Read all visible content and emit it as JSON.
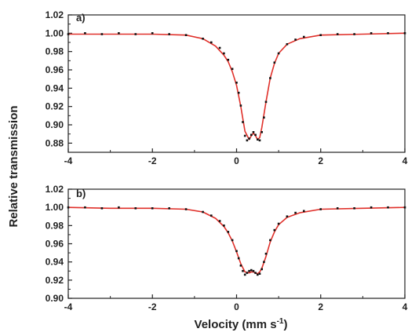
{
  "figure": {
    "ylabel": "Relative transmission",
    "xlabel_main": "Velocity (mm s",
    "xlabel_sup": "-1",
    "xlabel_close": ")"
  },
  "colors": {
    "fit_line": "#e0302a",
    "data_points": "#111111",
    "axes": "#222222"
  },
  "chart_data": [
    {
      "type": "scatter",
      "panel_label": "a)",
      "xlim": [
        -4,
        4
      ],
      "ylim": [
        0.87,
        1.02
      ],
      "xticks": [
        -4,
        -2,
        0,
        2,
        4
      ],
      "xtick_labels": [
        "-4",
        "-2",
        "0",
        "2",
        "4"
      ],
      "yticks": [
        0.88,
        0.9,
        0.92,
        0.94,
        0.96,
        0.98,
        1.0,
        1.02
      ],
      "ytick_labels": [
        "0.88",
        "0.90",
        "0.92",
        "0.94",
        "0.96",
        "0.98",
        "1.00",
        "1.02"
      ],
      "grid": false,
      "series": [
        {
          "kind": "measured",
          "x": [
            -4.0,
            -3.6,
            -3.2,
            -2.8,
            -2.4,
            -2.0,
            -1.6,
            -1.2,
            -0.8,
            -0.6,
            -0.4,
            -0.3,
            -0.2,
            -0.1,
            0.0,
            0.05,
            0.1,
            0.15,
            0.2,
            0.25,
            0.3,
            0.35,
            0.4,
            0.45,
            0.5,
            0.55,
            0.6,
            0.65,
            0.7,
            0.8,
            0.9,
            1.0,
            1.2,
            1.4,
            1.6,
            2.0,
            2.4,
            2.8,
            3.2,
            3.6,
            4.0
          ],
          "y": [
            0.999,
            1.0,
            0.999,
            1.0,
            0.999,
            1.0,
            0.999,
            0.998,
            0.994,
            0.99,
            0.984,
            0.978,
            0.971,
            0.961,
            0.946,
            0.935,
            0.921,
            0.903,
            0.888,
            0.883,
            0.885,
            0.889,
            0.892,
            0.889,
            0.884,
            0.883,
            0.892,
            0.908,
            0.925,
            0.951,
            0.968,
            0.978,
            0.988,
            0.993,
            0.996,
            0.998,
            0.999,
            0.999,
            1.0,
            1.0,
            1.0
          ]
        },
        {
          "kind": "fit",
          "x": [
            -4.0,
            -3.0,
            -2.0,
            -1.2,
            -0.8,
            -0.5,
            -0.3,
            -0.2,
            -0.1,
            0.0,
            0.1,
            0.2,
            0.3,
            0.35,
            0.4,
            0.45,
            0.5,
            0.55,
            0.6,
            0.7,
            0.8,
            0.9,
            1.0,
            1.2,
            1.5,
            2.0,
            3.0,
            4.0
          ],
          "y": [
            0.999,
            0.999,
            0.999,
            0.998,
            0.994,
            0.986,
            0.976,
            0.969,
            0.958,
            0.943,
            0.92,
            0.893,
            0.884,
            0.888,
            0.891,
            0.888,
            0.884,
            0.886,
            0.897,
            0.925,
            0.951,
            0.967,
            0.978,
            0.988,
            0.994,
            0.998,
            0.999,
            1.0
          ]
        }
      ]
    },
    {
      "type": "scatter",
      "panel_label": "b)",
      "xlim": [
        -4,
        4
      ],
      "ylim": [
        0.9,
        1.02
      ],
      "xticks": [
        -4,
        -2,
        0,
        2,
        4
      ],
      "xtick_labels": [
        "-4",
        "-2",
        "0",
        "2",
        "4"
      ],
      "yticks": [
        0.9,
        0.92,
        0.94,
        0.96,
        0.98,
        1.0,
        1.02
      ],
      "ytick_labels": [
        "0.90",
        "0.92",
        "0.94",
        "0.96",
        "0.98",
        "1.00",
        "1.02"
      ],
      "grid": false,
      "series": [
        {
          "kind": "measured",
          "x": [
            -4.0,
            -3.6,
            -3.2,
            -2.8,
            -2.4,
            -2.0,
            -1.6,
            -1.2,
            -0.8,
            -0.6,
            -0.4,
            -0.3,
            -0.2,
            -0.1,
            0.0,
            0.05,
            0.1,
            0.15,
            0.2,
            0.25,
            0.3,
            0.35,
            0.4,
            0.45,
            0.5,
            0.55,
            0.6,
            0.65,
            0.7,
            0.8,
            0.9,
            1.0,
            1.2,
            1.4,
            1.6,
            2.0,
            2.4,
            2.8,
            3.2,
            3.6,
            4.0
          ],
          "y": [
            1.0,
            1.0,
            0.999,
            1.0,
            0.999,
            0.999,
            0.999,
            0.998,
            0.995,
            0.991,
            0.985,
            0.98,
            0.973,
            0.964,
            0.952,
            0.944,
            0.936,
            0.93,
            0.926,
            0.928,
            0.93,
            0.931,
            0.93,
            0.928,
            0.926,
            0.927,
            0.932,
            0.94,
            0.949,
            0.964,
            0.975,
            0.982,
            0.99,
            0.994,
            0.996,
            0.998,
            0.999,
            0.999,
            1.0,
            1.0,
            1.0
          ]
        },
        {
          "kind": "fit",
          "x": [
            -4.0,
            -3.0,
            -2.0,
            -1.2,
            -0.8,
            -0.5,
            -0.3,
            -0.2,
            -0.1,
            0.0,
            0.1,
            0.2,
            0.3,
            0.35,
            0.4,
            0.45,
            0.5,
            0.55,
            0.6,
            0.7,
            0.8,
            0.9,
            1.0,
            1.2,
            1.5,
            2.0,
            3.0,
            4.0
          ],
          "y": [
            1.0,
            0.999,
            0.999,
            0.998,
            0.995,
            0.988,
            0.979,
            0.972,
            0.963,
            0.951,
            0.938,
            0.929,
            0.928,
            0.929,
            0.929,
            0.928,
            0.927,
            0.929,
            0.933,
            0.946,
            0.962,
            0.973,
            0.981,
            0.989,
            0.994,
            0.998,
            0.999,
            1.0
          ]
        }
      ]
    }
  ]
}
